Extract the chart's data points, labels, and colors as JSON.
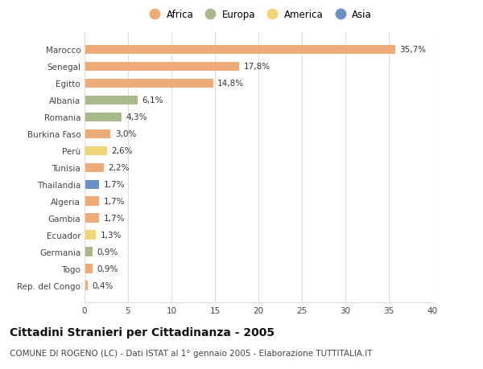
{
  "categories": [
    "Marocco",
    "Senegal",
    "Egitto",
    "Albania",
    "Romania",
    "Burkina Faso",
    "Perù",
    "Tunisia",
    "Thailandia",
    "Algeria",
    "Gambia",
    "Ecuador",
    "Germania",
    "Togo",
    "Rep. del Congo"
  ],
  "values": [
    35.7,
    17.8,
    14.8,
    6.1,
    4.3,
    3.0,
    2.6,
    2.2,
    1.7,
    1.7,
    1.7,
    1.3,
    0.9,
    0.9,
    0.4
  ],
  "labels": [
    "35,7%",
    "17,8%",
    "14,8%",
    "6,1%",
    "4,3%",
    "3,0%",
    "2,6%",
    "2,2%",
    "1,7%",
    "1,7%",
    "1,7%",
    "1,3%",
    "0,9%",
    "0,9%",
    "0,4%"
  ],
  "continents": [
    "Africa",
    "Africa",
    "Africa",
    "Europa",
    "Europa",
    "Africa",
    "America",
    "Africa",
    "Asia",
    "Africa",
    "Africa",
    "America",
    "Europa",
    "Africa",
    "Africa"
  ],
  "continent_colors": {
    "Africa": "#EDAB7A",
    "Europa": "#A8BA8A",
    "America": "#F0D478",
    "Asia": "#6B8FC4"
  },
  "legend_items": [
    "Africa",
    "Europa",
    "America",
    "Asia"
  ],
  "legend_colors": [
    "#EDAB7A",
    "#A8BA8A",
    "#F0D478",
    "#6B8FC4"
  ],
  "title": "Cittadini Stranieri per Cittadinanza - 2005",
  "subtitle": "COMUNE DI ROGENO (LC) - Dati ISTAT al 1° gennaio 2005 - Elaborazione TUTTITALIA.IT",
  "xlim": [
    0,
    40
  ],
  "xticks": [
    0,
    5,
    10,
    15,
    20,
    25,
    30,
    35,
    40
  ],
  "background_color": "#ffffff",
  "grid_color": "#dddddd",
  "bar_height": 0.55,
  "title_fontsize": 10,
  "subtitle_fontsize": 7.5,
  "label_fontsize": 7.5,
  "tick_fontsize": 7.5,
  "legend_fontsize": 8.5
}
